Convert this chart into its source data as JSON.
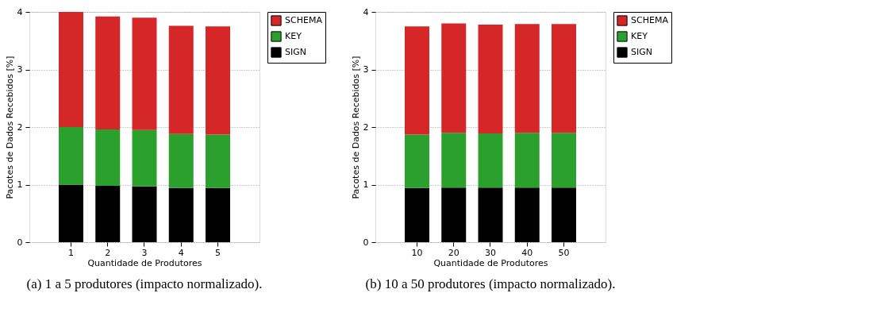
{
  "chart_data": [
    {
      "type": "bar",
      "stacked": true,
      "xlabel": "Quantidade de Produtores",
      "ylabel": "Pacotes de Dados Recebidos [%]",
      "categories": [
        "1",
        "2",
        "3",
        "4",
        "5"
      ],
      "ylim": [
        0,
        4
      ],
      "yticks": [
        0,
        1,
        2,
        3,
        4
      ],
      "grid": "y",
      "legend": "top right",
      "annotations": [
        "(a)  1 a 5 produtores (impacto normalizado)."
      ],
      "series": [
        {
          "name": "SIGN",
          "color": "#000000",
          "values": [
            1.0,
            0.98,
            0.97,
            0.94,
            0.94
          ]
        },
        {
          "name": "KEY",
          "color": "#2ca02c",
          "values": [
            1.0,
            0.98,
            0.98,
            0.94,
            0.93
          ]
        },
        {
          "name": "SCHEMA",
          "color": "#d62728",
          "values": [
            2.0,
            1.96,
            1.95,
            1.88,
            1.88
          ]
        }
      ]
    },
    {
      "type": "bar",
      "stacked": true,
      "xlabel": "Quantidade de Produtores",
      "ylabel": "Pacotes de Dados Recebidos [%]",
      "categories": [
        "10",
        "20",
        "30",
        "40",
        "50"
      ],
      "ylim": [
        0,
        4
      ],
      "yticks": [
        0,
        1,
        2,
        3,
        4
      ],
      "grid": "y",
      "legend": "top right",
      "annotations": [
        "(b)  10 a 50 produtores (impacto normalizado)."
      ],
      "series": [
        {
          "name": "SIGN",
          "color": "#000000",
          "values": [
            0.94,
            0.95,
            0.95,
            0.95,
            0.95
          ]
        },
        {
          "name": "KEY",
          "color": "#2ca02c",
          "values": [
            0.93,
            0.95,
            0.94,
            0.95,
            0.95
          ]
        },
        {
          "name": "SCHEMA",
          "color": "#d62728",
          "values": [
            1.88,
            1.9,
            1.89,
            1.89,
            1.89
          ]
        }
      ]
    }
  ]
}
